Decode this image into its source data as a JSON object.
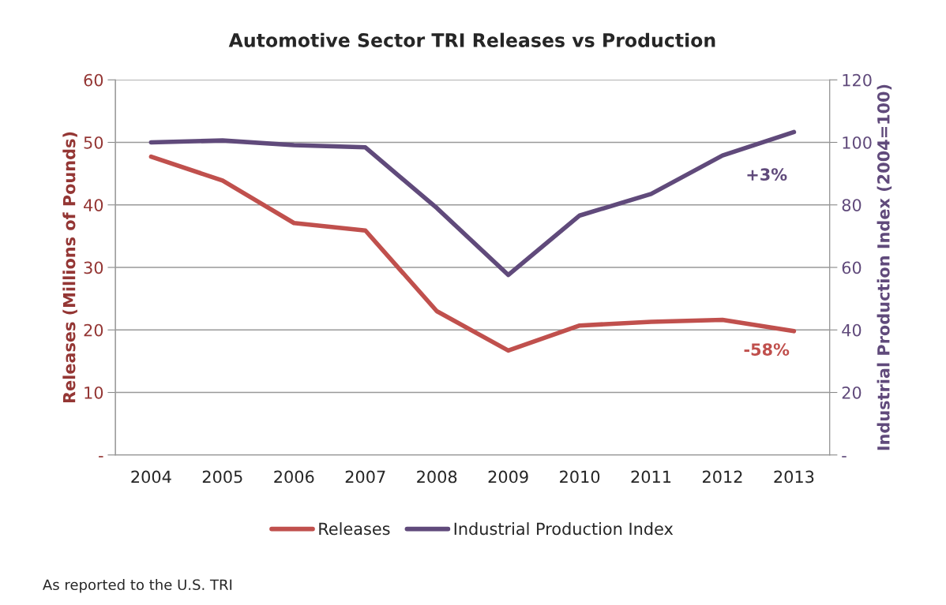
{
  "chart_data": {
    "type": "line",
    "title": "Automotive Sector TRI Releases vs Production",
    "ylabel": "Releases (Millions of Pounds)",
    "y2label": "Industrial Production Index (2004=100)",
    "categories": [
      "2004",
      "2005",
      "2006",
      "2007",
      "2008",
      "2009",
      "2010",
      "2011",
      "2012",
      "2013"
    ],
    "series": [
      {
        "name": "Releases",
        "color": "#c0504d",
        "values": [
          47.7,
          43.9,
          37.1,
          35.9,
          23.0,
          16.7,
          20.7,
          21.3,
          21.6,
          19.8
        ]
      },
      {
        "name": "Industrial Production Index",
        "color": "#604a7b",
        "axis": "y2",
        "values": [
          100,
          100.6,
          99.1,
          98.4,
          79,
          57.6,
          76.6,
          83.5,
          95.8,
          103.3
        ]
      }
    ],
    "ylim": [
      0,
      60
    ],
    "yticks": [
      {
        "value": 0,
        "label": "-"
      },
      10,
      20,
      30,
      40,
      50,
      60
    ],
    "y2lim": [
      0,
      120
    ],
    "y2ticks": [
      {
        "value": 0,
        "label": "-"
      },
      20,
      40,
      60,
      80,
      100,
      120
    ],
    "annotations": [
      "-58%",
      "+3%",
      "As reported to the U.S. TRI"
    ],
    "grid": "y",
    "legend": "bottom",
    "marker": "none",
    "line_style": "solid"
  }
}
